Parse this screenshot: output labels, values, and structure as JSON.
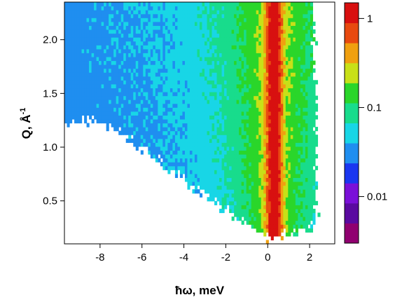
{
  "chart_data": {
    "type": "heatmap",
    "xlabel": "ħω, meV",
    "ylabel": "Q, Å",
    "ylabel_superscript": "-1",
    "xlim": [
      -9.7,
      3.2
    ],
    "ylim": [
      0.1,
      2.35
    ],
    "x_ticks": [
      -8,
      -6,
      -4,
      -2,
      0,
      2
    ],
    "x_tick_labels": [
      "-8",
      "-6",
      "-4",
      "-2",
      "0",
      "2"
    ],
    "y_ticks": [
      0.5,
      1.0,
      1.5,
      2.0
    ],
    "y_tick_labels": [
      "0.5",
      "1.0",
      "1.5",
      "2.0"
    ],
    "colorbar": {
      "scale": "log",
      "range": [
        0.003,
        1.5
      ],
      "ticks": [
        0.01,
        0.1,
        1
      ],
      "tick_labels": [
        "0.01",
        "0.1",
        "1"
      ],
      "colors": [
        "#900070",
        "#5a0aa0",
        "#7a10d8",
        "#1a36f0",
        "#1f8ef0",
        "#18d6e6",
        "#18dc8c",
        "#2ad62a",
        "#c8e018",
        "#f0a010",
        "#e84a10",
        "#d81010"
      ]
    },
    "elastic_line_center_meV": 0.3,
    "max_intensity": 1.2,
    "grid": false
  }
}
